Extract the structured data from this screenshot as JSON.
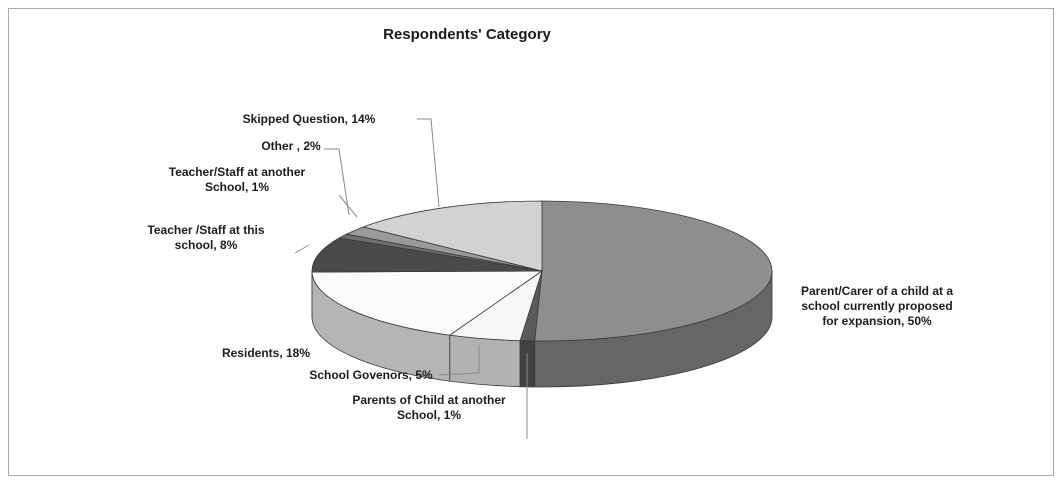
{
  "chart_data": {
    "type": "pie",
    "title": "Respondents' Category",
    "three_d": true,
    "legend": "none",
    "slices": [
      {
        "key": "parent_carer",
        "label_lines": [
          "Parent/Carer of a child at a",
          "school currently proposed",
          "for expansion, 50%"
        ],
        "value": 50,
        "color": "#8e8e8e"
      },
      {
        "key": "parents_other_school",
        "label_lines": [
          "Parents of Child at another",
          "School, 1%"
        ],
        "value": 1,
        "color": "#5a5a5a"
      },
      {
        "key": "school_governors",
        "label_lines": [
          "School Govenors, 5%"
        ],
        "value": 5,
        "color": "#f7f7f7"
      },
      {
        "key": "residents",
        "label_lines": [
          "Residents, 18%"
        ],
        "value": 18,
        "color": "#fbfbfb"
      },
      {
        "key": "teacher_this_school",
        "label_lines": [
          "Teacher /Staff at this",
          "school, 8%"
        ],
        "value": 8,
        "color": "#4a4a4a"
      },
      {
        "key": "teacher_another_school",
        "label_lines": [
          "Teacher/Staff at another",
          "School, 1%"
        ],
        "value": 1,
        "color": "#6e6e6e"
      },
      {
        "key": "other",
        "label_lines": [
          "Other , 2%"
        ],
        "value": 2,
        "color": "#9a9a9a"
      },
      {
        "key": "skipped_question",
        "label_lines": [
          "Skipped Question, 14%"
        ],
        "value": 14,
        "color": "#d2d2d2"
      }
    ]
  }
}
